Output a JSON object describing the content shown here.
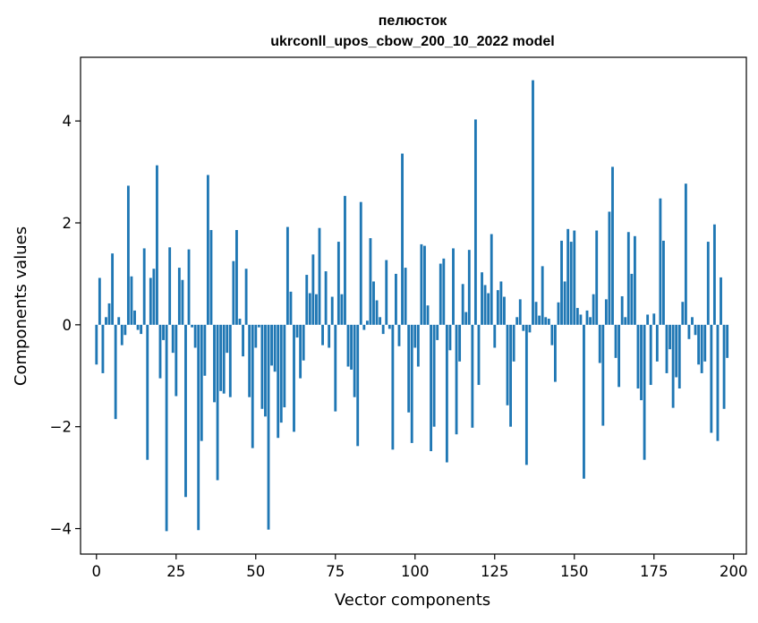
{
  "chart_data": {
    "type": "bar",
    "title_line1": "пелюсток",
    "title_line2": "ukrconll_upos_cbow_200_10_2022 model",
    "xlabel": "Vector components",
    "ylabel": "Components values",
    "xlim": [
      -5,
      204
    ],
    "ylim": [
      -4.5,
      5.25
    ],
    "xticks": [
      0,
      25,
      50,
      75,
      100,
      125,
      150,
      175,
      200
    ],
    "yticks": [
      -4,
      -2,
      0,
      2,
      4
    ],
    "ytick_labels": [
      "−4",
      "−2",
      "0",
      "2",
      "4"
    ],
    "bar_color": "#1f77b4",
    "grid": false,
    "values": [
      -0.78,
      0.92,
      -0.95,
      0.15,
      0.42,
      1.4,
      -1.85,
      0.15,
      -0.4,
      -0.2,
      2.73,
      0.95,
      0.28,
      -0.1,
      -0.18,
      1.5,
      -2.65,
      0.92,
      1.1,
      3.13,
      -1.05,
      -0.3,
      -4.05,
      1.52,
      -0.55,
      -1.4,
      1.12,
      0.88,
      -3.38,
      1.48,
      -0.05,
      -0.45,
      -4.03,
      -2.28,
      -1.0,
      2.94,
      1.86,
      -1.52,
      -3.05,
      -1.3,
      -1.35,
      -0.55,
      -1.42,
      1.25,
      1.86,
      0.12,
      -0.62,
      1.1,
      -1.42,
      -2.42,
      -0.45,
      -0.05,
      -1.65,
      -1.8,
      -4.02,
      -0.8,
      -0.92,
      -2.22,
      -1.92,
      -1.62,
      1.92,
      0.65,
      -2.1,
      -0.25,
      -1.05,
      -0.7,
      0.98,
      0.62,
      1.38,
      0.6,
      1.9,
      -0.4,
      1.05,
      -0.45,
      0.55,
      -1.7,
      1.63,
      0.6,
      2.53,
      -0.82,
      -0.88,
      -1.42,
      -2.38,
      2.41,
      -0.1,
      0.08,
      1.7,
      0.85,
      0.48,
      0.15,
      -0.18,
      1.27,
      -0.08,
      -2.45,
      1.0,
      -0.42,
      3.36,
      1.12,
      -1.72,
      -2.32,
      -0.45,
      -0.82,
      1.58,
      1.55,
      0.38,
      -2.48,
      -2.0,
      -0.3,
      1.2,
      1.3,
      -2.7,
      -0.5,
      1.5,
      -2.15,
      -0.72,
      0.8,
      0.25,
      1.47,
      -2.02,
      4.03,
      -1.18,
      1.03,
      0.78,
      0.62,
      1.78,
      -0.45,
      0.68,
      0.85,
      0.55,
      -1.58,
      -2.0,
      -0.72,
      0.15,
      0.5,
      -0.12,
      -2.75,
      -0.15,
      4.8,
      0.45,
      0.18,
      1.15,
      0.15,
      0.12,
      -0.4,
      -1.12,
      0.44,
      1.65,
      0.85,
      1.88,
      1.63,
      1.85,
      0.33,
      0.2,
      -3.02,
      0.28,
      0.15,
      0.6,
      1.85,
      -0.75,
      -1.98,
      0.5,
      2.22,
      3.1,
      -0.65,
      -1.22,
      0.56,
      0.15,
      1.82,
      1.0,
      1.74,
      -1.25,
      -1.48,
      -2.65,
      0.2,
      -1.18,
      0.22,
      -0.72,
      2.48,
      1.65,
      -0.95,
      -0.48,
      -1.63,
      -1.03,
      -1.25,
      0.45,
      2.77,
      -0.28,
      0.15,
      -0.2,
      -0.78,
      -0.95,
      -0.72,
      1.63,
      -2.12,
      1.97,
      -2.28,
      0.93,
      -1.65,
      -0.65,
      0.0
    ]
  }
}
